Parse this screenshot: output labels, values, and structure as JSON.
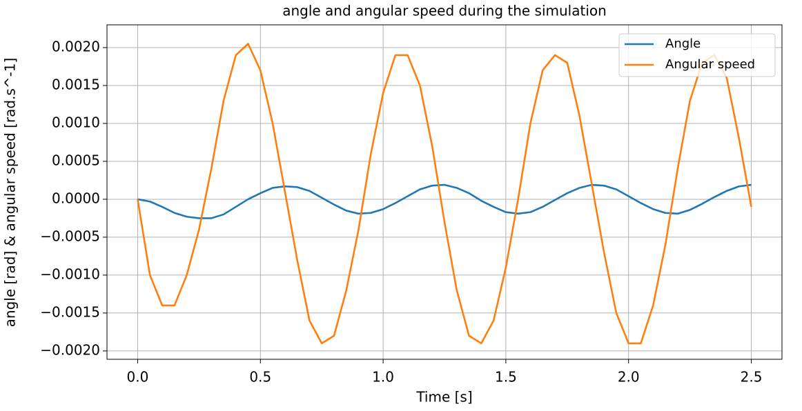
{
  "chart_data": {
    "type": "line",
    "title": "angle and angular speed during the simulation",
    "xlabel": "Time [s]",
    "ylabel": "angle [rad] & angular speed [rad.s^-1]",
    "x": [
      0,
      0.05,
      0.1,
      0.15,
      0.2,
      0.25,
      0.3,
      0.35,
      0.4,
      0.45,
      0.5,
      0.55,
      0.6,
      0.65,
      0.7,
      0.75,
      0.8,
      0.85,
      0.9,
      0.95,
      1.0,
      1.05,
      1.1,
      1.15,
      1.2,
      1.25,
      1.3,
      1.35,
      1.4,
      1.45,
      1.5,
      1.55,
      1.6,
      1.65,
      1.7,
      1.75,
      1.8,
      1.85,
      1.9,
      1.95,
      2.0,
      2.05,
      2.1,
      2.15,
      2.2,
      2.25,
      2.3,
      2.35,
      2.4,
      2.45,
      2.5
    ],
    "series": [
      {
        "name": "Angle",
        "color": "#1f77b4",
        "values": [
          0,
          -3e-05,
          -0.0001,
          -0.00018,
          -0.00023,
          -0.00025,
          -0.00025,
          -0.0002,
          -0.0001,
          0,
          8e-05,
          0.00015,
          0.00017,
          0.00016,
          0.00011,
          2e-05,
          -7e-05,
          -0.00015,
          -0.00019,
          -0.00018,
          -0.00013,
          -5e-05,
          4e-05,
          0.00013,
          0.00018,
          0.00019,
          0.00015,
          8e-05,
          -2e-05,
          -0.0001,
          -0.00017,
          -0.00019,
          -0.00017,
          -0.0001,
          -1e-05,
          8e-05,
          0.00015,
          0.00019,
          0.00018,
          0.00013,
          4e-05,
          -5e-05,
          -0.00013,
          -0.00018,
          -0.00019,
          -0.00014,
          -6e-05,
          3e-05,
          0.00011,
          0.00017,
          0.00019
        ]
      },
      {
        "name": "Angular speed",
        "color": "#ff7f0e",
        "values": [
          0,
          -0.001,
          -0.0014,
          -0.0014,
          -0.001,
          -0.0004,
          0.0004,
          0.0013,
          0.0019,
          0.00205,
          0.0017,
          0.001,
          0.0001,
          -0.0008,
          -0.0016,
          -0.0019,
          -0.0018,
          -0.0012,
          -0.0004,
          0.0006,
          0.0014,
          0.0019,
          0.0019,
          0.0015,
          0.0007,
          -0.0003,
          -0.0012,
          -0.0018,
          -0.0019,
          -0.0016,
          -0.0009,
          0,
          0.001,
          0.0017,
          0.0019,
          0.0018,
          0.0011,
          0.0002,
          -0.0007,
          -0.0015,
          -0.0019,
          -0.0019,
          -0.0014,
          -0.0006,
          0.0004,
          0.0013,
          0.0018,
          0.0019,
          0.0016,
          0.0008,
          -0.0001
        ]
      }
    ],
    "xlim": [
      -0.125,
      2.625
    ],
    "ylim": [
      -0.00211,
      0.0023
    ],
    "xticks": [
      {
        "value": 0,
        "label": "0.0"
      },
      {
        "value": 0.5,
        "label": "0.5"
      },
      {
        "value": 1,
        "label": "1.0"
      },
      {
        "value": 1.5,
        "label": "1.5"
      },
      {
        "value": 2,
        "label": "2.0"
      },
      {
        "value": 2.5,
        "label": "2.5"
      }
    ],
    "yticks": [
      {
        "value": -0.002,
        "label": "−0.0020"
      },
      {
        "value": -0.0015,
        "label": "−0.0015"
      },
      {
        "value": -0.001,
        "label": "−0.0010"
      },
      {
        "value": -0.0005,
        "label": "−0.0005"
      },
      {
        "value": 0,
        "label": "0.0000"
      },
      {
        "value": 0.0005,
        "label": "0.0005"
      },
      {
        "value": 0.001,
        "label": "0.0010"
      },
      {
        "value": 0.0015,
        "label": "0.0015"
      },
      {
        "value": 0.002,
        "label": "0.0020"
      }
    ],
    "grid": true,
    "legend": "upper right"
  }
}
